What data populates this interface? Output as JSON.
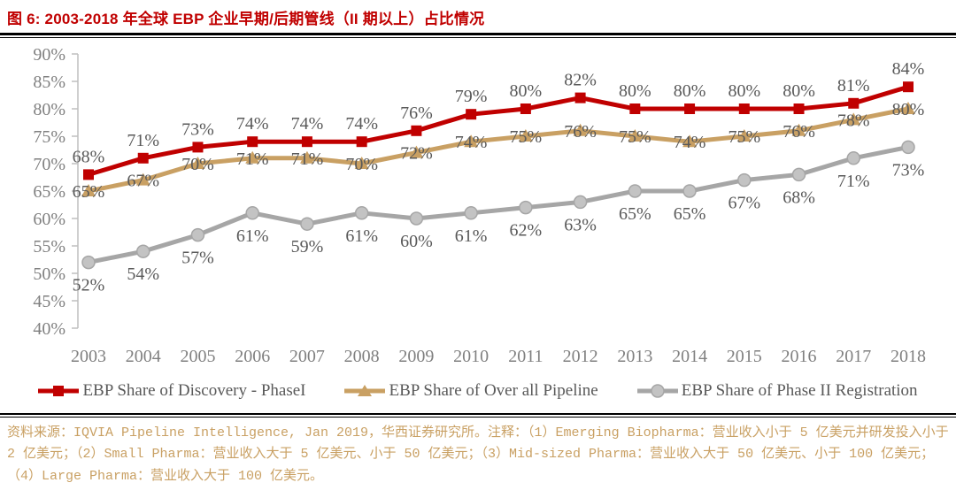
{
  "title": "图 6: 2003-2018 年全球 EBP 企业早期/后期管线（II 期以上）占比情况",
  "footer": {
    "text": "资料来源：IQVIA Pipeline Intelligence, Jan 2019，华西证券研究所。注释：（1）Emerging Biopharma：营业收入小于 5 亿美元并研发投入小于 2 亿美元；（2）Small Pharma：营业收入大于 5 亿美元、小于 50 亿美元；（3）Mid-sized Pharma：营业收入大于 50 亿美元、小于 100 亿美元；（4）Large Pharma：营业收入大于 100 亿美元。"
  },
  "colors": {
    "title_red": "#c00000",
    "series_red": "#c00000",
    "series_gold": "#c9a063",
    "series_gray": "#a6a6a6",
    "axis_text": "#808080",
    "label_text": "#595959",
    "axis_line": "#bfbfbf",
    "footer_text": "#c9a063"
  },
  "chart_data": {
    "type": "line",
    "x": [
      "2003",
      "2004",
      "2005",
      "2006",
      "2007",
      "2008",
      "2009",
      "2010",
      "2011",
      "2012",
      "2013",
      "2014",
      "2015",
      "2016",
      "2017",
      "2018"
    ],
    "series": [
      {
        "name": "EBP Share of Discovery - PhaseI",
        "color": "#c00000",
        "marker": "square",
        "label_position": "above",
        "values": [
          68,
          71,
          73,
          74,
          74,
          74,
          76,
          79,
          80,
          82,
          80,
          80,
          80,
          80,
          81,
          84
        ]
      },
      {
        "name": "EBP Share of Over all Pipeline",
        "color": "#c9a063",
        "marker": "triangle",
        "label_position": "center",
        "values": [
          65,
          67,
          70,
          71,
          71,
          70,
          72,
          74,
          75,
          76,
          75,
          74,
          75,
          76,
          78,
          80
        ]
      },
      {
        "name": "EBP Share of Phase II Registration",
        "color": "#a6a6a6",
        "marker": "circle",
        "label_position": "below",
        "values": [
          52,
          54,
          57,
          61,
          59,
          61,
          60,
          61,
          62,
          63,
          65,
          65,
          67,
          68,
          71,
          73
        ]
      }
    ],
    "ylim": [
      40,
      90
    ],
    "ytick_step": 5,
    "unit": "%",
    "grid": false,
    "legend_position": "bottom",
    "data_labels": true
  }
}
